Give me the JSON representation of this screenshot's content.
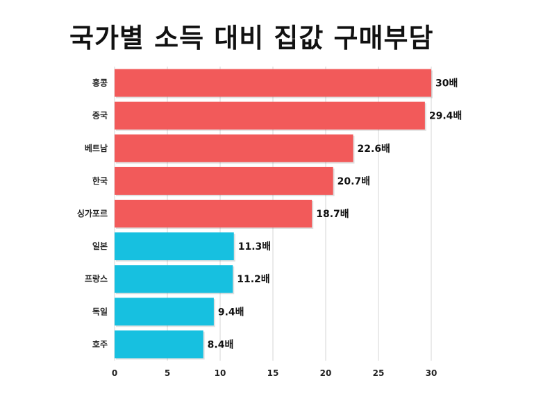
{
  "chart_data": {
    "type": "bar",
    "orientation": "horizontal",
    "title": "국가별 소득 대비 집값 구매부담",
    "categories": [
      "홍콩",
      "중국",
      "베트남",
      "한국",
      "싱가포르",
      "일본",
      "프랑스",
      "독일",
      "호주"
    ],
    "values": [
      30,
      29.4,
      22.6,
      20.7,
      18.7,
      11.3,
      11.2,
      9.4,
      8.4
    ],
    "value_labels": [
      "30배",
      "29.4배",
      "22.6배",
      "20.7배",
      "18.7배",
      "11.3배",
      "11.2배",
      "9.4배",
      "8.4배"
    ],
    "bar_colors": [
      "#f25a5a",
      "#f25a5a",
      "#f25a5a",
      "#f25a5a",
      "#f25a5a",
      "#17c0e0",
      "#17c0e0",
      "#17c0e0",
      "#17c0e0"
    ],
    "xlim": [
      0,
      30
    ],
    "xticks": [
      0,
      5,
      10,
      15,
      20,
      25,
      30
    ],
    "grid": true,
    "xlabel": "",
    "ylabel": ""
  }
}
